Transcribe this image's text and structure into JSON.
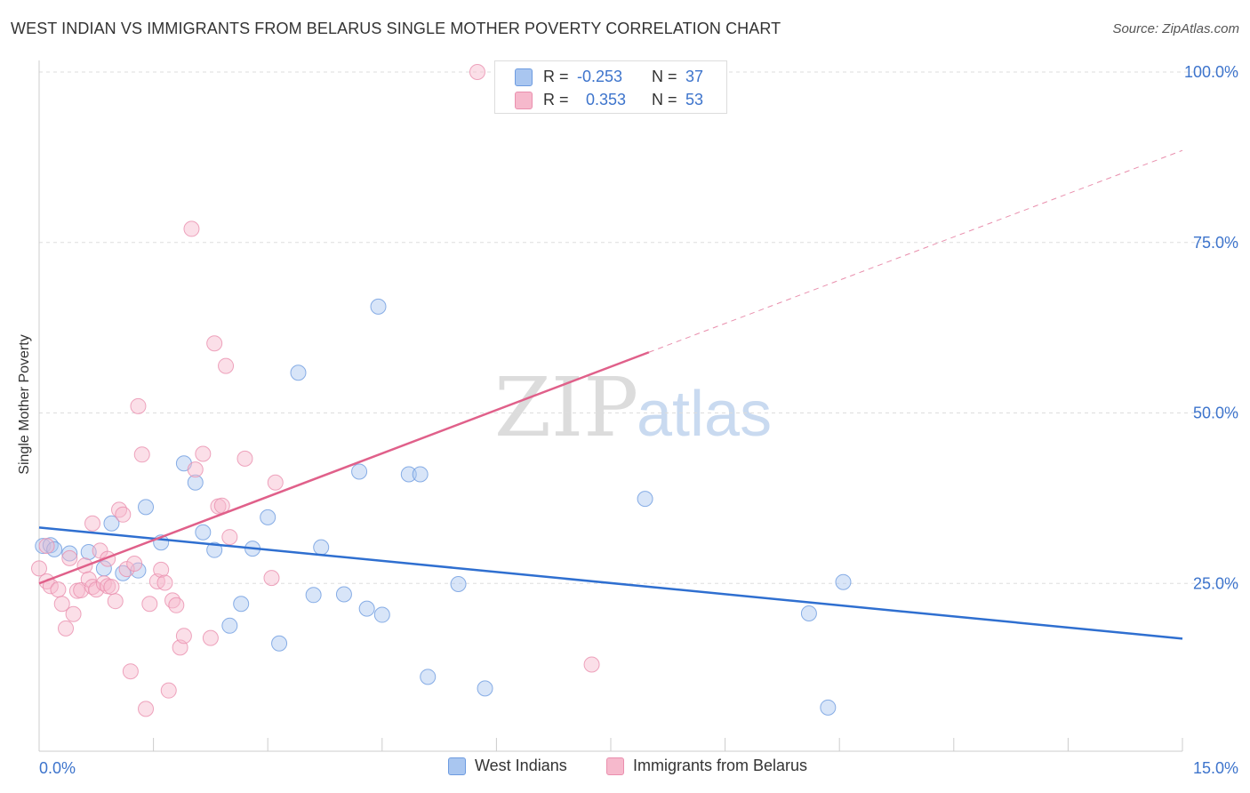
{
  "title": "WEST INDIAN VS IMMIGRANTS FROM BELARUS SINGLE MOTHER POVERTY CORRELATION CHART",
  "source": "Source: ZipAtlas.com",
  "watermark": {
    "zip": "ZIP",
    "atlas": "atlas"
  },
  "legend_stats": [
    {
      "r_label": "R =",
      "r_value": "-0.253",
      "n_label": "N =",
      "n_value": "37",
      "color": "#a9c6f0"
    },
    {
      "r_label": "R =",
      "r_value": "0.353",
      "n_label": "N =",
      "n_value": "53",
      "color": "#f6b9cc"
    }
  ],
  "legend": [
    {
      "name": "West Indians",
      "color": "#a9c6f0"
    },
    {
      "name": "Immigrants from Belarus",
      "color": "#f6b9cc"
    }
  ],
  "colors": {
    "blue_line": "#2f6fd0",
    "pink_line": "#e0608a",
    "blue_fill": "#a9c6f0",
    "pink_fill": "#f6b9cc",
    "tick_text": "#3d74cc"
  },
  "chart_data": {
    "type": "scatter",
    "title": "WEST INDIAN VS IMMIGRANTS FROM BELARUS SINGLE MOTHER POVERTY CORRELATION CHART",
    "xlabel": "",
    "ylabel": "Single Mother Poverty",
    "xlim": [
      0,
      15
    ],
    "ylim": [
      0,
      100
    ],
    "x_tick_labels": [
      "0.0%",
      "15.0%"
    ],
    "y_ticks": [
      25,
      50,
      75,
      100
    ],
    "y_tick_labels": [
      "25.0%",
      "50.0%",
      "75.0%",
      "100.0%"
    ],
    "grid": true,
    "series": [
      {
        "name": "West Indians",
        "r": -0.253,
        "n": 37,
        "trend": {
          "x0": 0,
          "y0": 33.2,
          "x1": 15,
          "y1": 16.9,
          "dashed_to": null
        },
        "points": [
          [
            0.05,
            30.5
          ],
          [
            0.15,
            30.6
          ],
          [
            0.4,
            29.4
          ],
          [
            0.65,
            29.6
          ],
          [
            0.85,
            27.2
          ],
          [
            0.95,
            33.8
          ],
          [
            1.1,
            26.5
          ],
          [
            1.3,
            26.9
          ],
          [
            1.4,
            36.2
          ],
          [
            1.6,
            31.0
          ],
          [
            1.9,
            42.6
          ],
          [
            2.05,
            39.8
          ],
          [
            2.15,
            32.5
          ],
          [
            2.3,
            29.9
          ],
          [
            2.5,
            18.8
          ],
          [
            2.65,
            22.0
          ],
          [
            2.8,
            30.1
          ],
          [
            3.0,
            34.7
          ],
          [
            3.15,
            16.2
          ],
          [
            3.4,
            55.9
          ],
          [
            3.6,
            23.3
          ],
          [
            3.7,
            30.3
          ],
          [
            4.0,
            23.4
          ],
          [
            4.2,
            41.4
          ],
          [
            4.3,
            21.3
          ],
          [
            4.45,
            65.6
          ],
          [
            4.5,
            20.4
          ],
          [
            4.85,
            41.0
          ],
          [
            5.0,
            41.0
          ],
          [
            5.1,
            11.3
          ],
          [
            5.5,
            24.9
          ],
          [
            5.85,
            9.6
          ],
          [
            7.95,
            37.4
          ],
          [
            10.1,
            20.6
          ],
          [
            10.35,
            6.8
          ],
          [
            10.55,
            25.2
          ],
          [
            0.2,
            30.0
          ]
        ]
      },
      {
        "name": "Immigrants from Belarus",
        "r": 0.353,
        "n": 53,
        "trend": {
          "x0": 0,
          "y0": 25.0,
          "x1": 8.0,
          "y1": 58.9,
          "dashed_to": {
            "x": 15,
            "y": 88.5
          }
        },
        "points": [
          [
            0.0,
            27.2
          ],
          [
            0.1,
            30.5
          ],
          [
            0.1,
            25.3
          ],
          [
            0.15,
            24.6
          ],
          [
            0.25,
            24.1
          ],
          [
            0.3,
            22.0
          ],
          [
            0.35,
            18.4
          ],
          [
            0.4,
            28.7
          ],
          [
            0.45,
            20.5
          ],
          [
            0.5,
            23.9
          ],
          [
            0.55,
            24.0
          ],
          [
            0.6,
            27.6
          ],
          [
            0.65,
            25.6
          ],
          [
            0.7,
            33.8
          ],
          [
            0.7,
            24.5
          ],
          [
            0.75,
            24.1
          ],
          [
            0.8,
            29.8
          ],
          [
            0.85,
            25.0
          ],
          [
            0.9,
            28.6
          ],
          [
            0.9,
            24.6
          ],
          [
            0.95,
            24.5
          ],
          [
            1.0,
            22.4
          ],
          [
            1.05,
            35.8
          ],
          [
            1.1,
            35.1
          ],
          [
            1.15,
            27.1
          ],
          [
            1.2,
            12.1
          ],
          [
            1.25,
            27.9
          ],
          [
            1.3,
            51.0
          ],
          [
            1.35,
            43.9
          ],
          [
            1.4,
            6.6
          ],
          [
            1.45,
            22.0
          ],
          [
            1.55,
            25.3
          ],
          [
            1.6,
            27.0
          ],
          [
            1.65,
            25.1
          ],
          [
            1.7,
            9.3
          ],
          [
            1.75,
            22.5
          ],
          [
            1.8,
            21.8
          ],
          [
            1.85,
            15.6
          ],
          [
            1.9,
            17.3
          ],
          [
            2.0,
            77.0
          ],
          [
            2.05,
            41.7
          ],
          [
            2.15,
            44.0
          ],
          [
            2.25,
            17.0
          ],
          [
            2.3,
            60.2
          ],
          [
            2.35,
            36.3
          ],
          [
            2.4,
            36.4
          ],
          [
            2.45,
            56.9
          ],
          [
            2.5,
            31.8
          ],
          [
            2.7,
            43.3
          ],
          [
            3.05,
            25.8
          ],
          [
            3.1,
            39.8
          ],
          [
            5.75,
            100.0
          ],
          [
            7.25,
            13.1
          ]
        ]
      }
    ]
  }
}
